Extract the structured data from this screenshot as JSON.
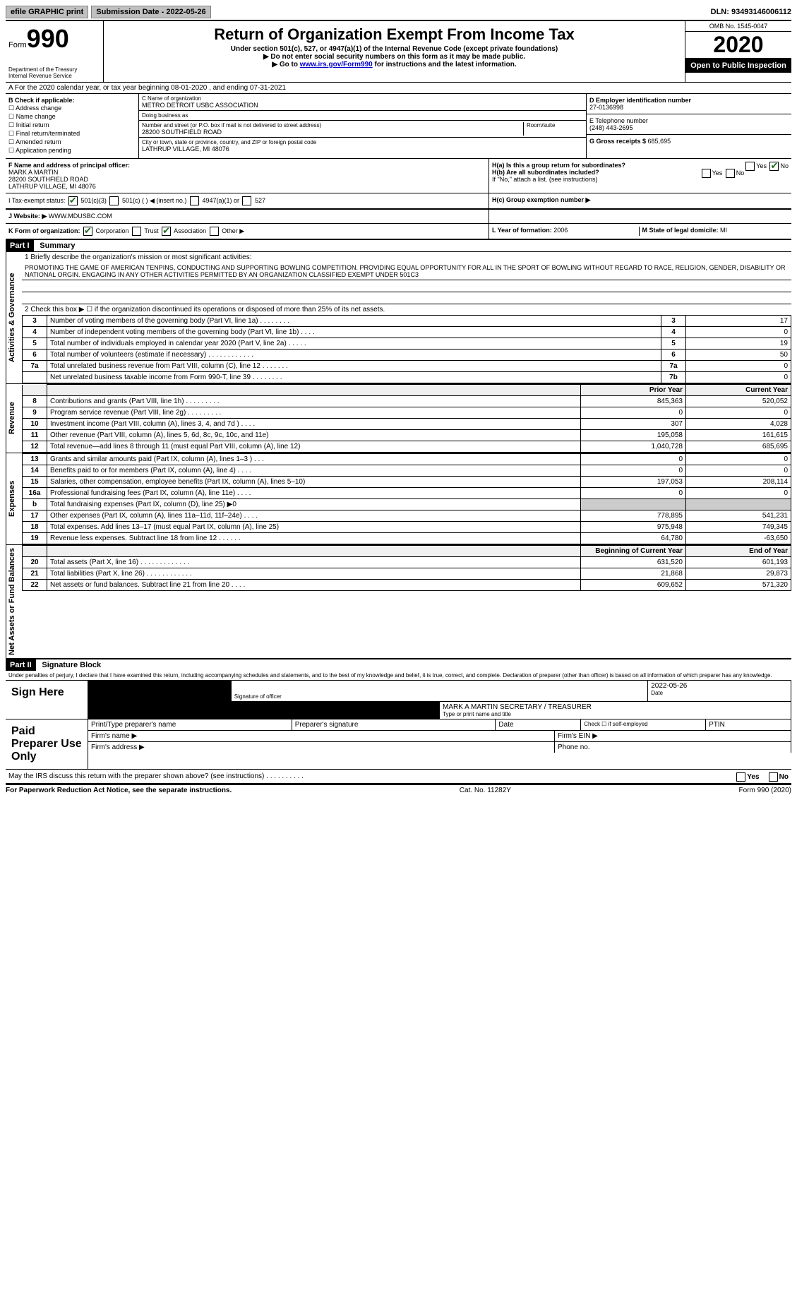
{
  "topbar": {
    "efile": "efile GRAPHIC print",
    "subdate_label": "Submission Date - ",
    "subdate": "2022-05-26",
    "dln_label": "DLN: ",
    "dln": "93493146006112"
  },
  "header": {
    "form_word": "Form",
    "form_num": "990",
    "dept": "Department of the Treasury\nInternal Revenue Service",
    "title": "Return of Organization Exempt From Income Tax",
    "subtitle": "Under section 501(c), 527, or 4947(a)(1) of the Internal Revenue Code (except private foundations)",
    "note1": "▶ Do not enter social security numbers on this form as it may be made public.",
    "note2_pre": "▶ Go to ",
    "note2_link": "www.irs.gov/Form990",
    "note2_post": " for instructions and the latest information.",
    "omb": "OMB No. 1545-0047",
    "year": "2020",
    "open": "Open to Public Inspection"
  },
  "rowA": {
    "text": "A For the 2020 calendar year, or tax year beginning 08-01-2020   , and ending 07-31-2021"
  },
  "boxB": {
    "label": "B Check if applicable:",
    "items": [
      "Address change",
      "Name change",
      "Initial return",
      "Final return/terminated",
      "Amended return",
      "Application pending"
    ]
  },
  "boxC": {
    "name_label": "C Name of organization",
    "name": "METRO DETROIT USBC ASSOCIATION",
    "dba_label": "Doing business as",
    "dba": "",
    "street_label": "Number and street (or P.O. box if mail is not delivered to street address)",
    "street": "28200 SOUTHFIELD ROAD",
    "room_label": "Room/suite",
    "city_label": "City or town, state or province, country, and ZIP or foreign postal code",
    "city": "LATHRUP VILLAGE, MI  48076"
  },
  "boxD": {
    "label": "D Employer identification number",
    "value": "27-0136998"
  },
  "boxE": {
    "label": "E Telephone number",
    "value": "(248) 443-2695"
  },
  "boxG": {
    "label": "G Gross receipts $ ",
    "value": "685,695"
  },
  "boxF": {
    "label": "F  Name and address of principal officer:",
    "name": "MARK A MARTIN",
    "addr1": "28200 SOUTHFIELD ROAD",
    "addr2": "LATHRUP VILLAGE, MI  48076"
  },
  "boxH": {
    "a": "H(a)  Is this a group return for subordinates?",
    "b": "H(b)  Are all subordinates included?",
    "note": "If \"No,\" attach a list. (see instructions)",
    "c": "H(c)  Group exemption number ▶",
    "yes": "Yes",
    "no": "No"
  },
  "rowI": {
    "label": "I   Tax-exempt status:",
    "c3": "501(c)(3)",
    "c": "501(c) (  ) ◀ (insert no.)",
    "a1": "4947(a)(1) or",
    "s527": "527"
  },
  "rowJ": {
    "label": "J   Website: ▶",
    "value": "WWW.MDUSBC.COM"
  },
  "rowK": {
    "label": "K Form of organization:",
    "corp": "Corporation",
    "trust": "Trust",
    "assoc": "Association",
    "other": "Other ▶"
  },
  "rowL": {
    "label": "L Year of formation: ",
    "value": "2006"
  },
  "rowM": {
    "label": "M State of legal domicile: ",
    "value": "MI"
  },
  "part1": {
    "hdr": "Part I",
    "title": "Summary",
    "line1_label": "1  Briefly describe the organization's mission or most significant activities:",
    "mission": "PROMOTING THE GAME OF AMERICAN TENPINS, CONDUCTING AND SUPPORTING BOWLING COMPETITION. PROVIDING EQUAL OPPORTUNITY FOR ALL IN THE SPORT OF BOWLING WITHOUT REGARD TO RACE, RELIGION, GENDER, DISABILITY OR NATIONAL ORGIN. ENGAGING IN ANY OTHER ACTIVITIES PERMITTED BY AN ORGANIZATION CLASSIFIED EXEMPT UNDER 501C3",
    "line2": "2   Check this box ▶ ☐ if the organization discontinued its operations or disposed of more than 25% of its net assets.",
    "prior": "Prior Year",
    "current": "Current Year",
    "begin": "Beginning of Current Year",
    "end": "End of Year",
    "side_gov": "Activities & Governance",
    "side_rev": "Revenue",
    "side_exp": "Expenses",
    "side_net": "Net Assets or Fund Balances"
  },
  "gov_lines": [
    {
      "n": "3",
      "d": "Number of voting members of the governing body (Part VI, line 1a)   .    .    .    .    .    .    .    .",
      "b": "3",
      "v": "17"
    },
    {
      "n": "4",
      "d": "Number of independent voting members of the governing body (Part VI, line 1b)   .   .   .   .",
      "b": "4",
      "v": "0"
    },
    {
      "n": "5",
      "d": "Total number of individuals employed in calendar year 2020 (Part V, line 2a)   .   .   .   .   .",
      "b": "5",
      "v": "19"
    },
    {
      "n": "6",
      "d": "Total number of volunteers (estimate if necessary)   .    .    .    .    .    .    .    .    .    .    .    .",
      "b": "6",
      "v": "50"
    },
    {
      "n": "7a",
      "d": "Total unrelated business revenue from Part VIII, column (C), line 12   .   .   .   .   .   .   .",
      "b": "7a",
      "v": "0"
    },
    {
      "n": "",
      "d": "Net unrelated business taxable income from Form 990-T, line 39   .   .   .   .   .   .   .   .",
      "b": "7b",
      "v": "0"
    }
  ],
  "rev_lines": [
    {
      "n": "8",
      "d": "Contributions and grants (Part VIII, line 1h)   .   .   .   .   .   .   .   .   .",
      "p": "845,363",
      "c": "520,052"
    },
    {
      "n": "9",
      "d": "Program service revenue (Part VIII, line 2g)   .   .   .   .   .   .   .   .   .",
      "p": "0",
      "c": "0"
    },
    {
      "n": "10",
      "d": "Investment income (Part VIII, column (A), lines 3, 4, and 7d )   .   .   .   .",
      "p": "307",
      "c": "4,028"
    },
    {
      "n": "11",
      "d": "Other revenue (Part VIII, column (A), lines 5, 6d, 8c, 9c, 10c, and 11e)",
      "p": "195,058",
      "c": "161,615"
    },
    {
      "n": "12",
      "d": "Total revenue—add lines 8 through 11 (must equal Part VIII, column (A), line 12)",
      "p": "1,040,728",
      "c": "685,695"
    }
  ],
  "exp_lines": [
    {
      "n": "13",
      "d": "Grants and similar amounts paid (Part IX, column (A), lines 1–3 )   .   .   .",
      "p": "0",
      "c": "0"
    },
    {
      "n": "14",
      "d": "Benefits paid to or for members (Part IX, column (A), line 4)   .   .   .   .",
      "p": "0",
      "c": "0"
    },
    {
      "n": "15",
      "d": "Salaries, other compensation, employee benefits (Part IX, column (A), lines 5–10)",
      "p": "197,053",
      "c": "208,114"
    },
    {
      "n": "16a",
      "d": "Professional fundraising fees (Part IX, column (A), line 11e)   .   .   .   .",
      "p": "0",
      "c": "0"
    },
    {
      "n": "b",
      "d": "Total fundraising expenses (Part IX, column (D), line 25) ▶0",
      "p": "",
      "c": ""
    },
    {
      "n": "17",
      "d": "Other expenses (Part IX, column (A), lines 11a–11d, 11f–24e)   .   .   .   .",
      "p": "778,895",
      "c": "541,231"
    },
    {
      "n": "18",
      "d": "Total expenses. Add lines 13–17 (must equal Part IX, column (A), line 25)",
      "p": "975,948",
      "c": "749,345"
    },
    {
      "n": "19",
      "d": "Revenue less expenses. Subtract line 18 from line 12   .   .   .   .   .   .",
      "p": "64,780",
      "c": "-63,650"
    }
  ],
  "net_lines": [
    {
      "n": "20",
      "d": "Total assets (Part X, line 16)   .   .   .   .   .   .   .   .   .   .   .   .   .",
      "p": "631,520",
      "c": "601,193"
    },
    {
      "n": "21",
      "d": "Total liabilities (Part X, line 26)   .   .   .   .   .   .   .   .   .   .   .   .",
      "p": "21,868",
      "c": "29,873"
    },
    {
      "n": "22",
      "d": "Net assets or fund balances. Subtract line 21 from line 20   .   .   .   .",
      "p": "609,652",
      "c": "571,320"
    }
  ],
  "part2": {
    "hdr": "Part II",
    "title": "Signature Block",
    "penalties": "Under penalties of perjury, I declare that I have examined this return, including accompanying schedules and statements, and to the best of my knowledge and belief, it is true, correct, and complete. Declaration of preparer (other than officer) is based on all information of which preparer has any knowledge."
  },
  "sign": {
    "here": "Sign Here",
    "sig_officer": "Signature of officer",
    "date": "Date",
    "sig_date": "2022-05-26",
    "name_title": "MARK A MARTIN  SECRETARY / TREASURER",
    "type_name": "Type or print name and title"
  },
  "paid": {
    "label": "Paid Preparer Use Only",
    "print_name": "Print/Type preparer's name",
    "sig": "Preparer's signature",
    "date": "Date",
    "check_self": "Check ☐ if self-employed",
    "ptin": "PTIN",
    "firm_name": "Firm's name   ▶",
    "firm_ein": "Firm's EIN ▶",
    "firm_addr": "Firm's address ▶",
    "phone": "Phone no."
  },
  "discuss": {
    "text": "May the IRS discuss this return with the preparer shown above? (see instructions)    .    .    .    .    .    .    .    .    .    .",
    "yes": "Yes",
    "no": "No"
  },
  "footer": {
    "left": "For Paperwork Reduction Act Notice, see the separate instructions.",
    "mid": "Cat. No. 11282Y",
    "right": "Form 990 (2020)"
  },
  "colors": {
    "link": "#0000cc",
    "check": "#1a6b1a"
  }
}
